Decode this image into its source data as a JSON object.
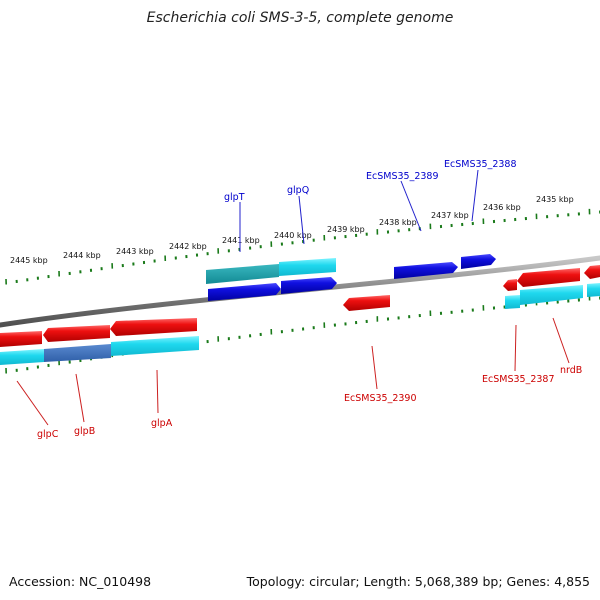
{
  "title": "Escherichia coli SMS-3-5, complete genome",
  "footer": {
    "accession": "Accession: NC_010498",
    "summary": "Topology: circular; Length: 5,068,389 bp; Genes: 4,855"
  },
  "colors": {
    "forward_gene": "#1010dd",
    "reverse_gene": "#e01010",
    "cds_forward": "#20d8e8",
    "cds_reverse": "#20d8e8",
    "backbone": "#808080",
    "ticks": "#1a7a1a"
  },
  "kbp_labels": [
    "2445 kbp",
    "2444 kbp",
    "2443 kbp",
    "2442 kbp",
    "2441 kbp",
    "2440 kbp",
    "2439 kbp",
    "2438 kbp",
    "2437 kbp",
    "2436 kbp",
    "2435 kbp"
  ],
  "gene_labels": {
    "top": [
      "glpT",
      "glpQ",
      "EcSMS35_2389",
      "EcSMS35_2388"
    ],
    "bottom": [
      "glpC",
      "glpB",
      "glpA",
      "EcSMS35_2390",
      "EcSMS35_2387",
      "nrdB"
    ]
  }
}
